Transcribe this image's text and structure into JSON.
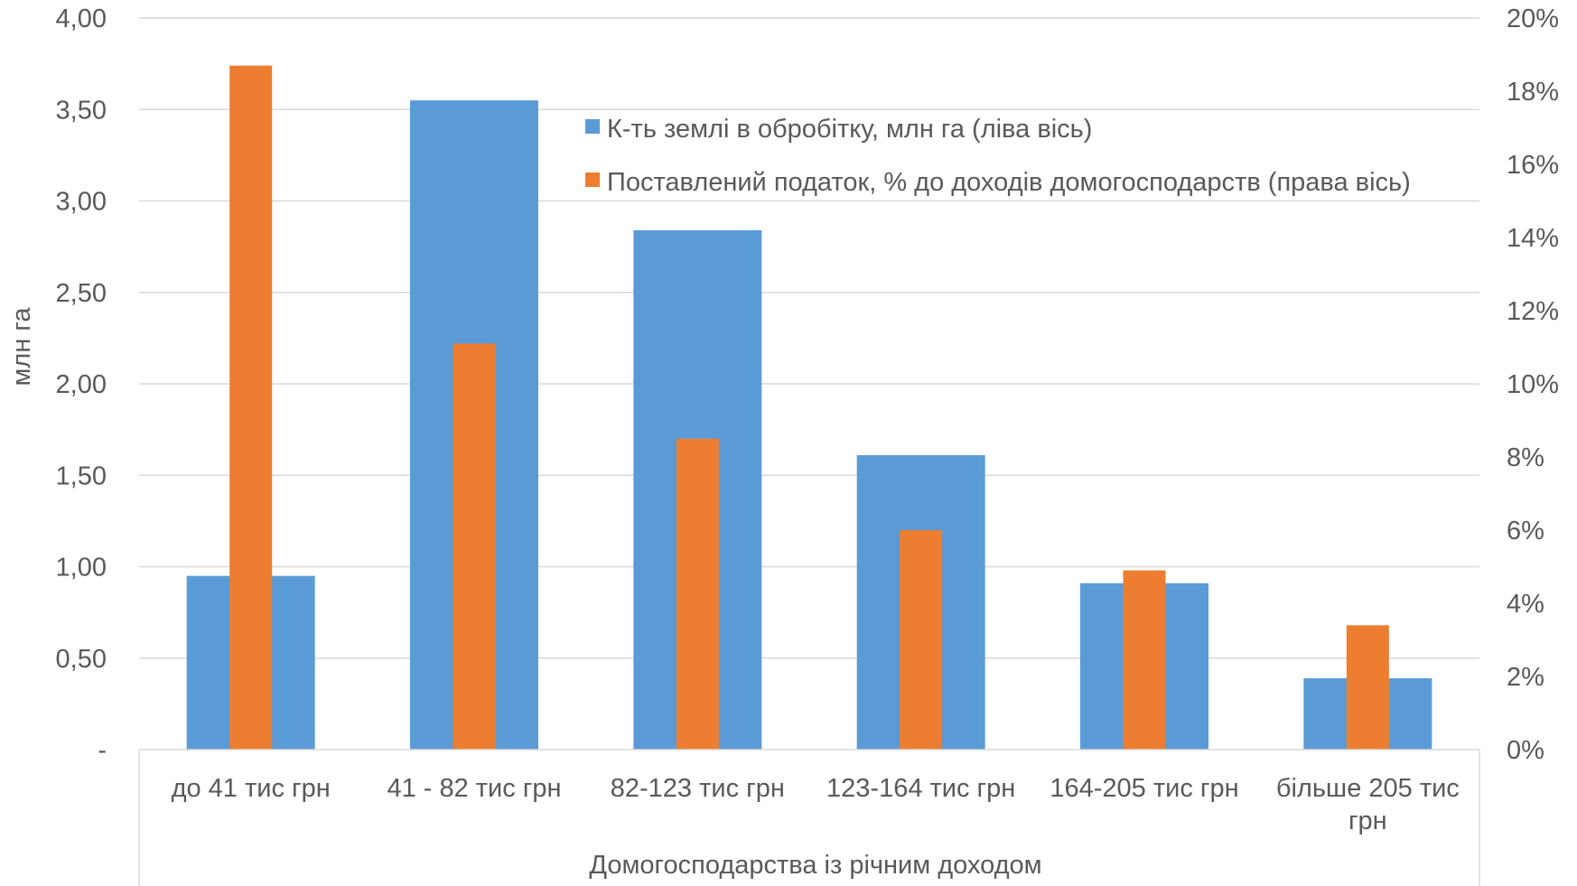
{
  "chart_data": {
    "type": "bar",
    "categories": [
      [
        "до 41 тис грн"
      ],
      [
        "41 - 82 тис грн"
      ],
      [
        "82-123 тис грн"
      ],
      [
        "123-164 тис грн"
      ],
      [
        "164-205 тис грн"
      ],
      [
        "більше 205 тис",
        "грн"
      ]
    ],
    "series": [
      {
        "name": "К-ть землі в обробітку, млн га (ліва вісь)",
        "axis": "left",
        "color": "#5B9BD5",
        "values": [
          0.95,
          3.55,
          2.84,
          1.61,
          0.91,
          0.39
        ]
      },
      {
        "name": "Поставлений податок, % до доходів домогосподарств (права вісь)",
        "axis": "right",
        "color": "#ED7D31",
        "values": [
          18.7,
          11.1,
          8.5,
          6.0,
          4.9,
          3.4
        ]
      }
    ],
    "left_axis": {
      "label": "млн га",
      "min": 0,
      "max": 4,
      "ticks": [
        "-",
        "0,50",
        "1,00",
        "1,50",
        "2,00",
        "2,50",
        "3,00",
        "3,50",
        "4,00"
      ]
    },
    "right_axis": {
      "label": "",
      "min": 0,
      "max": 20,
      "ticks": [
        "0%",
        "2%",
        "4%",
        "6%",
        "8%",
        "10%",
        "12%",
        "14%",
        "16%",
        "18%",
        "20%"
      ]
    },
    "xlabel": "Домогосподарства із річним доходом",
    "grid": true,
    "legend_position": "top-right"
  }
}
